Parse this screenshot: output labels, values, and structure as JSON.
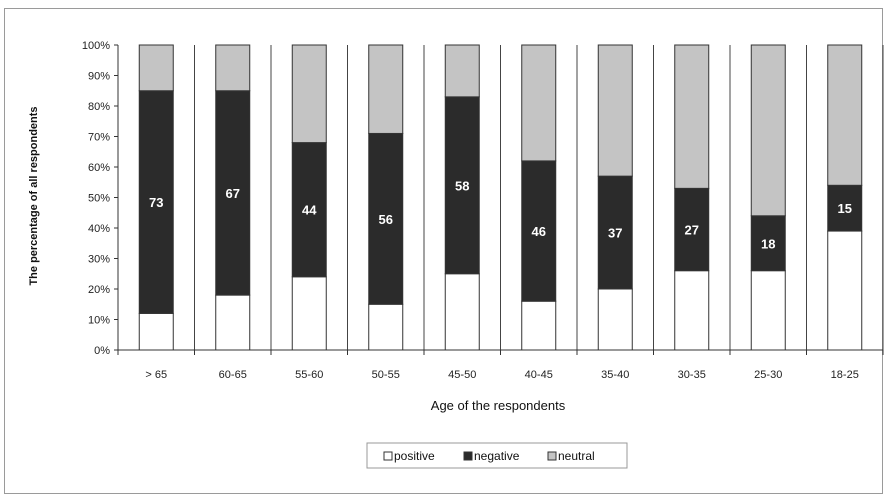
{
  "chart_data": {
    "type": "bar",
    "stacked": true,
    "normalized": true,
    "categories": [
      "> 65",
      "60-65",
      "55-60",
      "50-55",
      "45-50",
      "40-45",
      "35-40",
      "30-35",
      "25-30",
      "18-25"
    ],
    "series": [
      {
        "name": "positive",
        "color": "#ffffff",
        "values": [
          12,
          18,
          24,
          15,
          25,
          16,
          20,
          26,
          26,
          39
        ]
      },
      {
        "name": "negative",
        "color": "#2b2b2b",
        "values": [
          73,
          67,
          44,
          56,
          58,
          46,
          37,
          27,
          18,
          15
        ]
      },
      {
        "name": "neutral",
        "color": "#c4c4c4",
        "values": [
          15,
          15,
          32,
          29,
          17,
          38,
          43,
          47,
          56,
          46
        ]
      }
    ],
    "data_labels": [
      "73",
      "67",
      "44",
      "56",
      "58",
      "46",
      "37",
      "27",
      "18",
      "15"
    ],
    "yticks": [
      "0%",
      "10%",
      "20%",
      "30%",
      "40%",
      "50%",
      "60%",
      "70%",
      "80%",
      "90%",
      "100%"
    ],
    "ylim": [
      0,
      100
    ],
    "ylabel": "The percentage of all respondents",
    "xlabel": "Age of the respondents",
    "legend_position": "bottom-center",
    "grid": "vertical"
  }
}
